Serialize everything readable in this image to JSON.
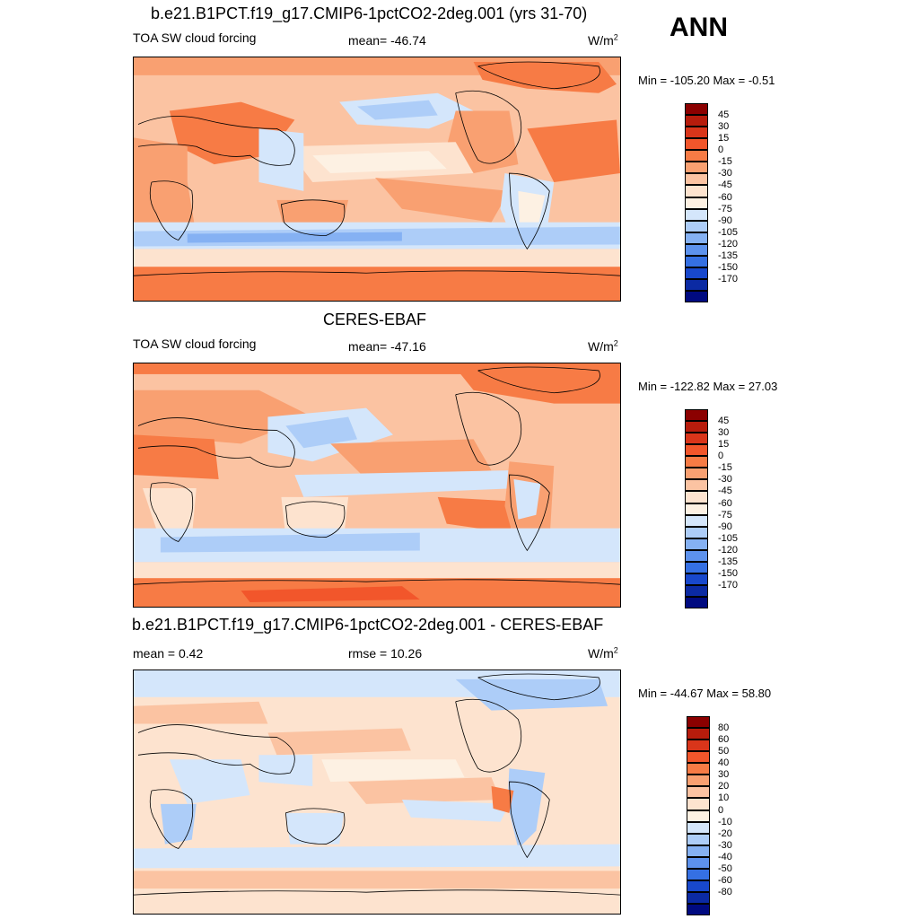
{
  "season": "ANN",
  "panels": [
    {
      "title": "b.e21.B1PCT.f19_g17.CMIP6-1pctCO2-2deg.001 (yrs 31-70)",
      "left": "TOA SW cloud forcing",
      "center": "mean= -46.74",
      "units": "W/m",
      "units_sup": "2",
      "minmax": "Min = -105.20 Max =  -0.51",
      "colorbar_labels": [
        "45",
        "30",
        "15",
        "0",
        "-15",
        "-30",
        "-45",
        "-60",
        "-75",
        "-90",
        "-105",
        "-120",
        "-135",
        "-150",
        "-170"
      ]
    },
    {
      "title": "CERES-EBAF",
      "left": "TOA SW cloud forcing",
      "center": "mean= -47.16",
      "units": "W/m",
      "units_sup": "2",
      "minmax": "Min = -122.82 Max =  27.03",
      "colorbar_labels": [
        "45",
        "30",
        "15",
        "0",
        "-15",
        "-30",
        "-45",
        "-60",
        "-75",
        "-90",
        "-105",
        "-120",
        "-135",
        "-150",
        "-170"
      ]
    },
    {
      "title": "b.e21.B1PCT.f19_g17.CMIP6-1pctCO2-2deg.001 - CERES-EBAF",
      "left": "mean =   0.42",
      "center": "rmse =  10.26",
      "units": "W/m",
      "units_sup": "2",
      "minmax": "Min = -44.67 Max =  58.80",
      "colorbar_labels": [
        "80",
        "60",
        "50",
        "40",
        "30",
        "20",
        "10",
        "0",
        "-10",
        "-20",
        "-30",
        "-40",
        "-50",
        "-60",
        "-80"
      ]
    }
  ],
  "colorbar_colors": [
    "#8b0000",
    "#b71c0c",
    "#d9351a",
    "#f2562b",
    "#f77b45",
    "#f9a071",
    "#fbc3a2",
    "#fde3cf",
    "#fdf1e3",
    "#d4e6fb",
    "#adcdf8",
    "#85b1f3",
    "#5d92ed",
    "#3570e3",
    "#1848cc",
    "#0b2aa3",
    "#000a80"
  ]
}
